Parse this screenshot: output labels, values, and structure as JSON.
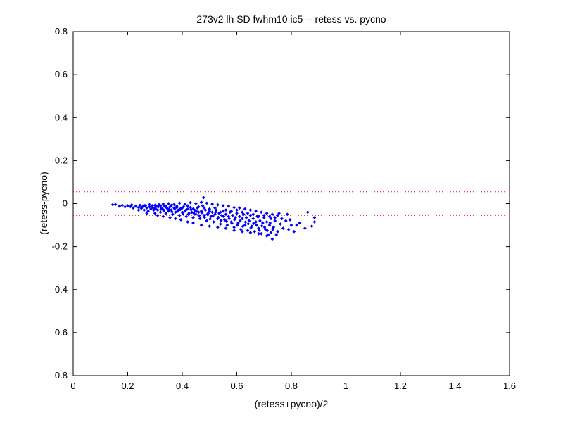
{
  "chart_data": {
    "type": "scatter",
    "title": "273v2 lh SD fwhm10 ic5 -- retess vs. pycno",
    "xlabel": "(retess+pycno)/2",
    "ylabel": "(retess-pycno)",
    "xlim": [
      0,
      1.6
    ],
    "ylim": [
      -0.8,
      0.8
    ],
    "xticks": [
      0,
      0.2,
      0.4,
      0.6,
      0.8,
      1,
      1.2,
      1.4,
      1.6
    ],
    "xtick_labels": [
      "0",
      "0.2",
      "0.4",
      "0.6",
      "0.8",
      "1",
      "1.2",
      "1.4",
      "1.6"
    ],
    "yticks": [
      -0.8,
      -0.6,
      -0.4,
      -0.2,
      0,
      0.2,
      0.4,
      0.6,
      0.8
    ],
    "ytick_labels": [
      "-0.8",
      "-0.6",
      "-0.4",
      "-0.2",
      "0",
      "0.2",
      "0.4",
      "0.6",
      "0.8"
    ],
    "grid": false,
    "marker_color": "#0000ff",
    "reference_line_color": "#ff0000",
    "reference_lines_y": [
      0.055,
      -0.055
    ],
    "points": [
      [
        0.145,
        -0.005
      ],
      [
        0.155,
        -0.004
      ],
      [
        0.17,
        -0.012
      ],
      [
        0.18,
        -0.008
      ],
      [
        0.19,
        -0.015
      ],
      [
        0.2,
        -0.01
      ],
      [
        0.21,
        -0.014
      ],
      [
        0.215,
        -0.006
      ],
      [
        0.22,
        -0.02
      ],
      [
        0.23,
        -0.012
      ],
      [
        0.24,
        -0.018
      ],
      [
        0.245,
        -0.008
      ],
      [
        0.25,
        -0.022
      ],
      [
        0.255,
        -0.014
      ],
      [
        0.26,
        -0.03
      ],
      [
        0.265,
        -0.01
      ],
      [
        0.27,
        -0.02
      ],
      [
        0.275,
        -0.035
      ],
      [
        0.28,
        -0.015
      ],
      [
        0.285,
        -0.025
      ],
      [
        0.29,
        -0.01
      ],
      [
        0.295,
        -0.03
      ],
      [
        0.3,
        -0.02
      ],
      [
        0.3,
        -0.045
      ],
      [
        0.305,
        -0.012
      ],
      [
        0.31,
        -0.03
      ],
      [
        0.315,
        -0.005
      ],
      [
        0.32,
        -0.04
      ],
      [
        0.325,
        -0.02
      ],
      [
        0.33,
        -0.028
      ],
      [
        0.335,
        -0.012
      ],
      [
        0.34,
        -0.045
      ],
      [
        0.345,
        -0.022
      ],
      [
        0.35,
        -0.035
      ],
      [
        0.355,
        -0.015
      ],
      [
        0.36,
        -0.03
      ],
      [
        0.365,
        -0.05
      ],
      [
        0.37,
        -0.02
      ],
      [
        0.375,
        -0.04
      ],
      [
        0.38,
        -0.012
      ],
      [
        0.385,
        -0.03
      ],
      [
        0.39,
        -0.055
      ],
      [
        0.395,
        -0.022
      ],
      [
        0.4,
        -0.04
      ],
      [
        0.405,
        -0.015
      ],
      [
        0.41,
        -0.035
      ],
      [
        0.415,
        -0.06
      ],
      [
        0.42,
        -0.025
      ],
      [
        0.425,
        -0.045
      ],
      [
        0.43,
        -0.018
      ],
      [
        0.435,
        -0.04
      ],
      [
        0.44,
        -0.065
      ],
      [
        0.445,
        -0.03
      ],
      [
        0.45,
        -0.05
      ],
      [
        0.455,
        -0.02
      ],
      [
        0.46,
        -0.04
      ],
      [
        0.465,
        -0.07
      ],
      [
        0.47,
        -0.035
      ],
      [
        0.475,
        -0.01
      ],
      [
        0.478,
        0.028
      ],
      [
        0.48,
        -0.055
      ],
      [
        0.485,
        -0.03
      ],
      [
        0.49,
        -0.08
      ],
      [
        0.495,
        -0.045
      ],
      [
        0.5,
        -0.025
      ],
      [
        0.505,
        -0.06
      ],
      [
        0.51,
        -0.04
      ],
      [
        0.515,
        -0.085
      ],
      [
        0.52,
        -0.05
      ],
      [
        0.525,
        -0.03
      ],
      [
        0.53,
        -0.07
      ],
      [
        0.535,
        -0.045
      ],
      [
        0.54,
        -0.095
      ],
      [
        0.545,
        -0.055
      ],
      [
        0.55,
        -0.035
      ],
      [
        0.555,
        -0.075
      ],
      [
        0.56,
        -0.05
      ],
      [
        0.565,
        -0.1
      ],
      [
        0.57,
        -0.06
      ],
      [
        0.575,
        -0.04
      ],
      [
        0.58,
        -0.085
      ],
      [
        0.585,
        -0.055
      ],
      [
        0.59,
        -0.11
      ],
      [
        0.595,
        -0.065
      ],
      [
        0.6,
        -0.045
      ],
      [
        0.605,
        -0.09
      ],
      [
        0.61,
        -0.06
      ],
      [
        0.615,
        -0.12
      ],
      [
        0.62,
        -0.07
      ],
      [
        0.625,
        -0.05
      ],
      [
        0.63,
        -0.1
      ],
      [
        0.635,
        -0.065
      ],
      [
        0.64,
        -0.125
      ],
      [
        0.645,
        -0.08
      ],
      [
        0.65,
        -0.055
      ],
      [
        0.655,
        -0.105
      ],
      [
        0.66,
        -0.07
      ],
      [
        0.665,
        -0.13
      ],
      [
        0.67,
        -0.085
      ],
      [
        0.675,
        -0.06
      ],
      [
        0.68,
        -0.115
      ],
      [
        0.685,
        -0.08
      ],
      [
        0.69,
        -0.14
      ],
      [
        0.695,
        -0.09
      ],
      [
        0.7,
        -0.065
      ],
      [
        0.705,
        -0.12
      ],
      [
        0.71,
        -0.085
      ],
      [
        0.715,
        -0.145
      ],
      [
        0.72,
        -0.1
      ],
      [
        0.725,
        -0.07
      ],
      [
        0.73,
        -0.165
      ],
      [
        0.735,
        -0.11
      ],
      [
        0.74,
        -0.08
      ],
      [
        0.75,
        -0.13
      ],
      [
        0.76,
        -0.095
      ],
      [
        0.77,
        -0.115
      ],
      [
        0.785,
        -0.05
      ],
      [
        0.79,
        -0.12
      ],
      [
        0.81,
        -0.13
      ],
      [
        0.82,
        -0.1
      ],
      [
        0.83,
        -0.09
      ],
      [
        0.85,
        -0.115
      ],
      [
        0.86,
        -0.04
      ],
      [
        0.875,
        -0.105
      ],
      [
        0.885,
        -0.085
      ],
      [
        0.885,
        -0.065
      ],
      [
        0.26,
        -0.008
      ],
      [
        0.28,
        -0.005
      ],
      [
        0.3,
        -0.008
      ],
      [
        0.32,
        -0.01
      ],
      [
        0.34,
        -0.012
      ],
      [
        0.36,
        -0.008
      ],
      [
        0.38,
        -0.018
      ],
      [
        0.4,
        -0.02
      ],
      [
        0.42,
        -0.01
      ],
      [
        0.44,
        -0.025
      ],
      [
        0.46,
        -0.015
      ],
      [
        0.48,
        -0.02
      ],
      [
        0.5,
        -0.035
      ],
      [
        0.52,
        -0.02
      ],
      [
        0.54,
        -0.04
      ],
      [
        0.56,
        -0.03
      ],
      [
        0.58,
        -0.035
      ],
      [
        0.6,
        -0.03
      ],
      [
        0.62,
        -0.04
      ],
      [
        0.64,
        -0.045
      ],
      [
        0.66,
        -0.05
      ],
      [
        0.68,
        -0.06
      ],
      [
        0.7,
        -0.055
      ],
      [
        0.72,
        -0.06
      ],
      [
        0.74,
        -0.065
      ],
      [
        0.755,
        -0.045
      ],
      [
        0.765,
        -0.07
      ],
      [
        0.78,
        -0.08
      ],
      [
        0.795,
        -0.075
      ],
      [
        0.8,
        -0.1
      ],
      [
        0.24,
        -0.03
      ],
      [
        0.27,
        -0.045
      ],
      [
        0.31,
        -0.055
      ],
      [
        0.33,
        -0.06
      ],
      [
        0.355,
        -0.065
      ],
      [
        0.375,
        -0.07
      ],
      [
        0.395,
        -0.075
      ],
      [
        0.42,
        -0.085
      ],
      [
        0.44,
        -0.09
      ],
      [
        0.47,
        -0.1
      ],
      [
        0.5,
        -0.105
      ],
      [
        0.53,
        -0.11
      ],
      [
        0.56,
        -0.115
      ],
      [
        0.59,
        -0.125
      ],
      [
        0.62,
        -0.13
      ],
      [
        0.65,
        -0.135
      ],
      [
        0.68,
        -0.14
      ],
      [
        0.71,
        -0.15
      ],
      [
        0.725,
        -0.135
      ],
      [
        0.745,
        -0.145
      ],
      [
        0.33,
        -0.002
      ],
      [
        0.35,
        0.0
      ],
      [
        0.37,
        -0.004
      ],
      [
        0.39,
        0.002
      ],
      [
        0.41,
        -0.003
      ],
      [
        0.43,
        0.004
      ],
      [
        0.45,
        0.0
      ],
      [
        0.47,
        0.006
      ],
      [
        0.49,
        0.002
      ],
      [
        0.51,
        -0.002
      ],
      [
        0.53,
        -0.006
      ],
      [
        0.55,
        -0.01
      ],
      [
        0.57,
        -0.012
      ],
      [
        0.59,
        -0.018
      ],
      [
        0.61,
        -0.02
      ],
      [
        0.63,
        -0.025
      ],
      [
        0.65,
        -0.03
      ],
      [
        0.67,
        -0.035
      ],
      [
        0.69,
        -0.04
      ],
      [
        0.71,
        -0.045
      ],
      [
        0.73,
        -0.05
      ],
      [
        0.75,
        -0.055
      ],
      [
        0.292,
        -0.018
      ],
      [
        0.302,
        -0.024
      ],
      [
        0.312,
        -0.016
      ],
      [
        0.322,
        -0.026
      ],
      [
        0.332,
        -0.034
      ],
      [
        0.342,
        -0.018
      ],
      [
        0.352,
        -0.026
      ],
      [
        0.362,
        -0.038
      ],
      [
        0.372,
        -0.024
      ],
      [
        0.382,
        -0.036
      ],
      [
        0.392,
        -0.028
      ],
      [
        0.402,
        -0.046
      ],
      [
        0.412,
        -0.032
      ],
      [
        0.422,
        -0.05
      ],
      [
        0.432,
        -0.028
      ],
      [
        0.442,
        -0.044
      ],
      [
        0.452,
        -0.036
      ],
      [
        0.462,
        -0.056
      ],
      [
        0.472,
        -0.042
      ],
      [
        0.482,
        -0.064
      ],
      [
        0.492,
        -0.05
      ],
      [
        0.502,
        -0.072
      ],
      [
        0.512,
        -0.058
      ],
      [
        0.522,
        -0.04
      ],
      [
        0.532,
        -0.064
      ],
      [
        0.542,
        -0.078
      ],
      [
        0.552,
        -0.06
      ],
      [
        0.562,
        -0.082
      ],
      [
        0.572,
        -0.07
      ],
      [
        0.582,
        -0.092
      ],
      [
        0.592,
        -0.074
      ],
      [
        0.602,
        -0.1
      ],
      [
        0.612,
        -0.08
      ],
      [
        0.622,
        -0.106
      ],
      [
        0.632,
        -0.086
      ],
      [
        0.642,
        -0.094
      ],
      [
        0.652,
        -0.112
      ],
      [
        0.662,
        -0.092
      ],
      [
        0.672,
        -0.1
      ],
      [
        0.682,
        -0.124
      ],
      [
        0.692,
        -0.104
      ],
      [
        0.702,
        -0.11
      ],
      [
        0.712,
        -0.126
      ],
      [
        0.722,
        -0.09
      ],
      [
        0.732,
        -0.12
      ]
    ]
  }
}
